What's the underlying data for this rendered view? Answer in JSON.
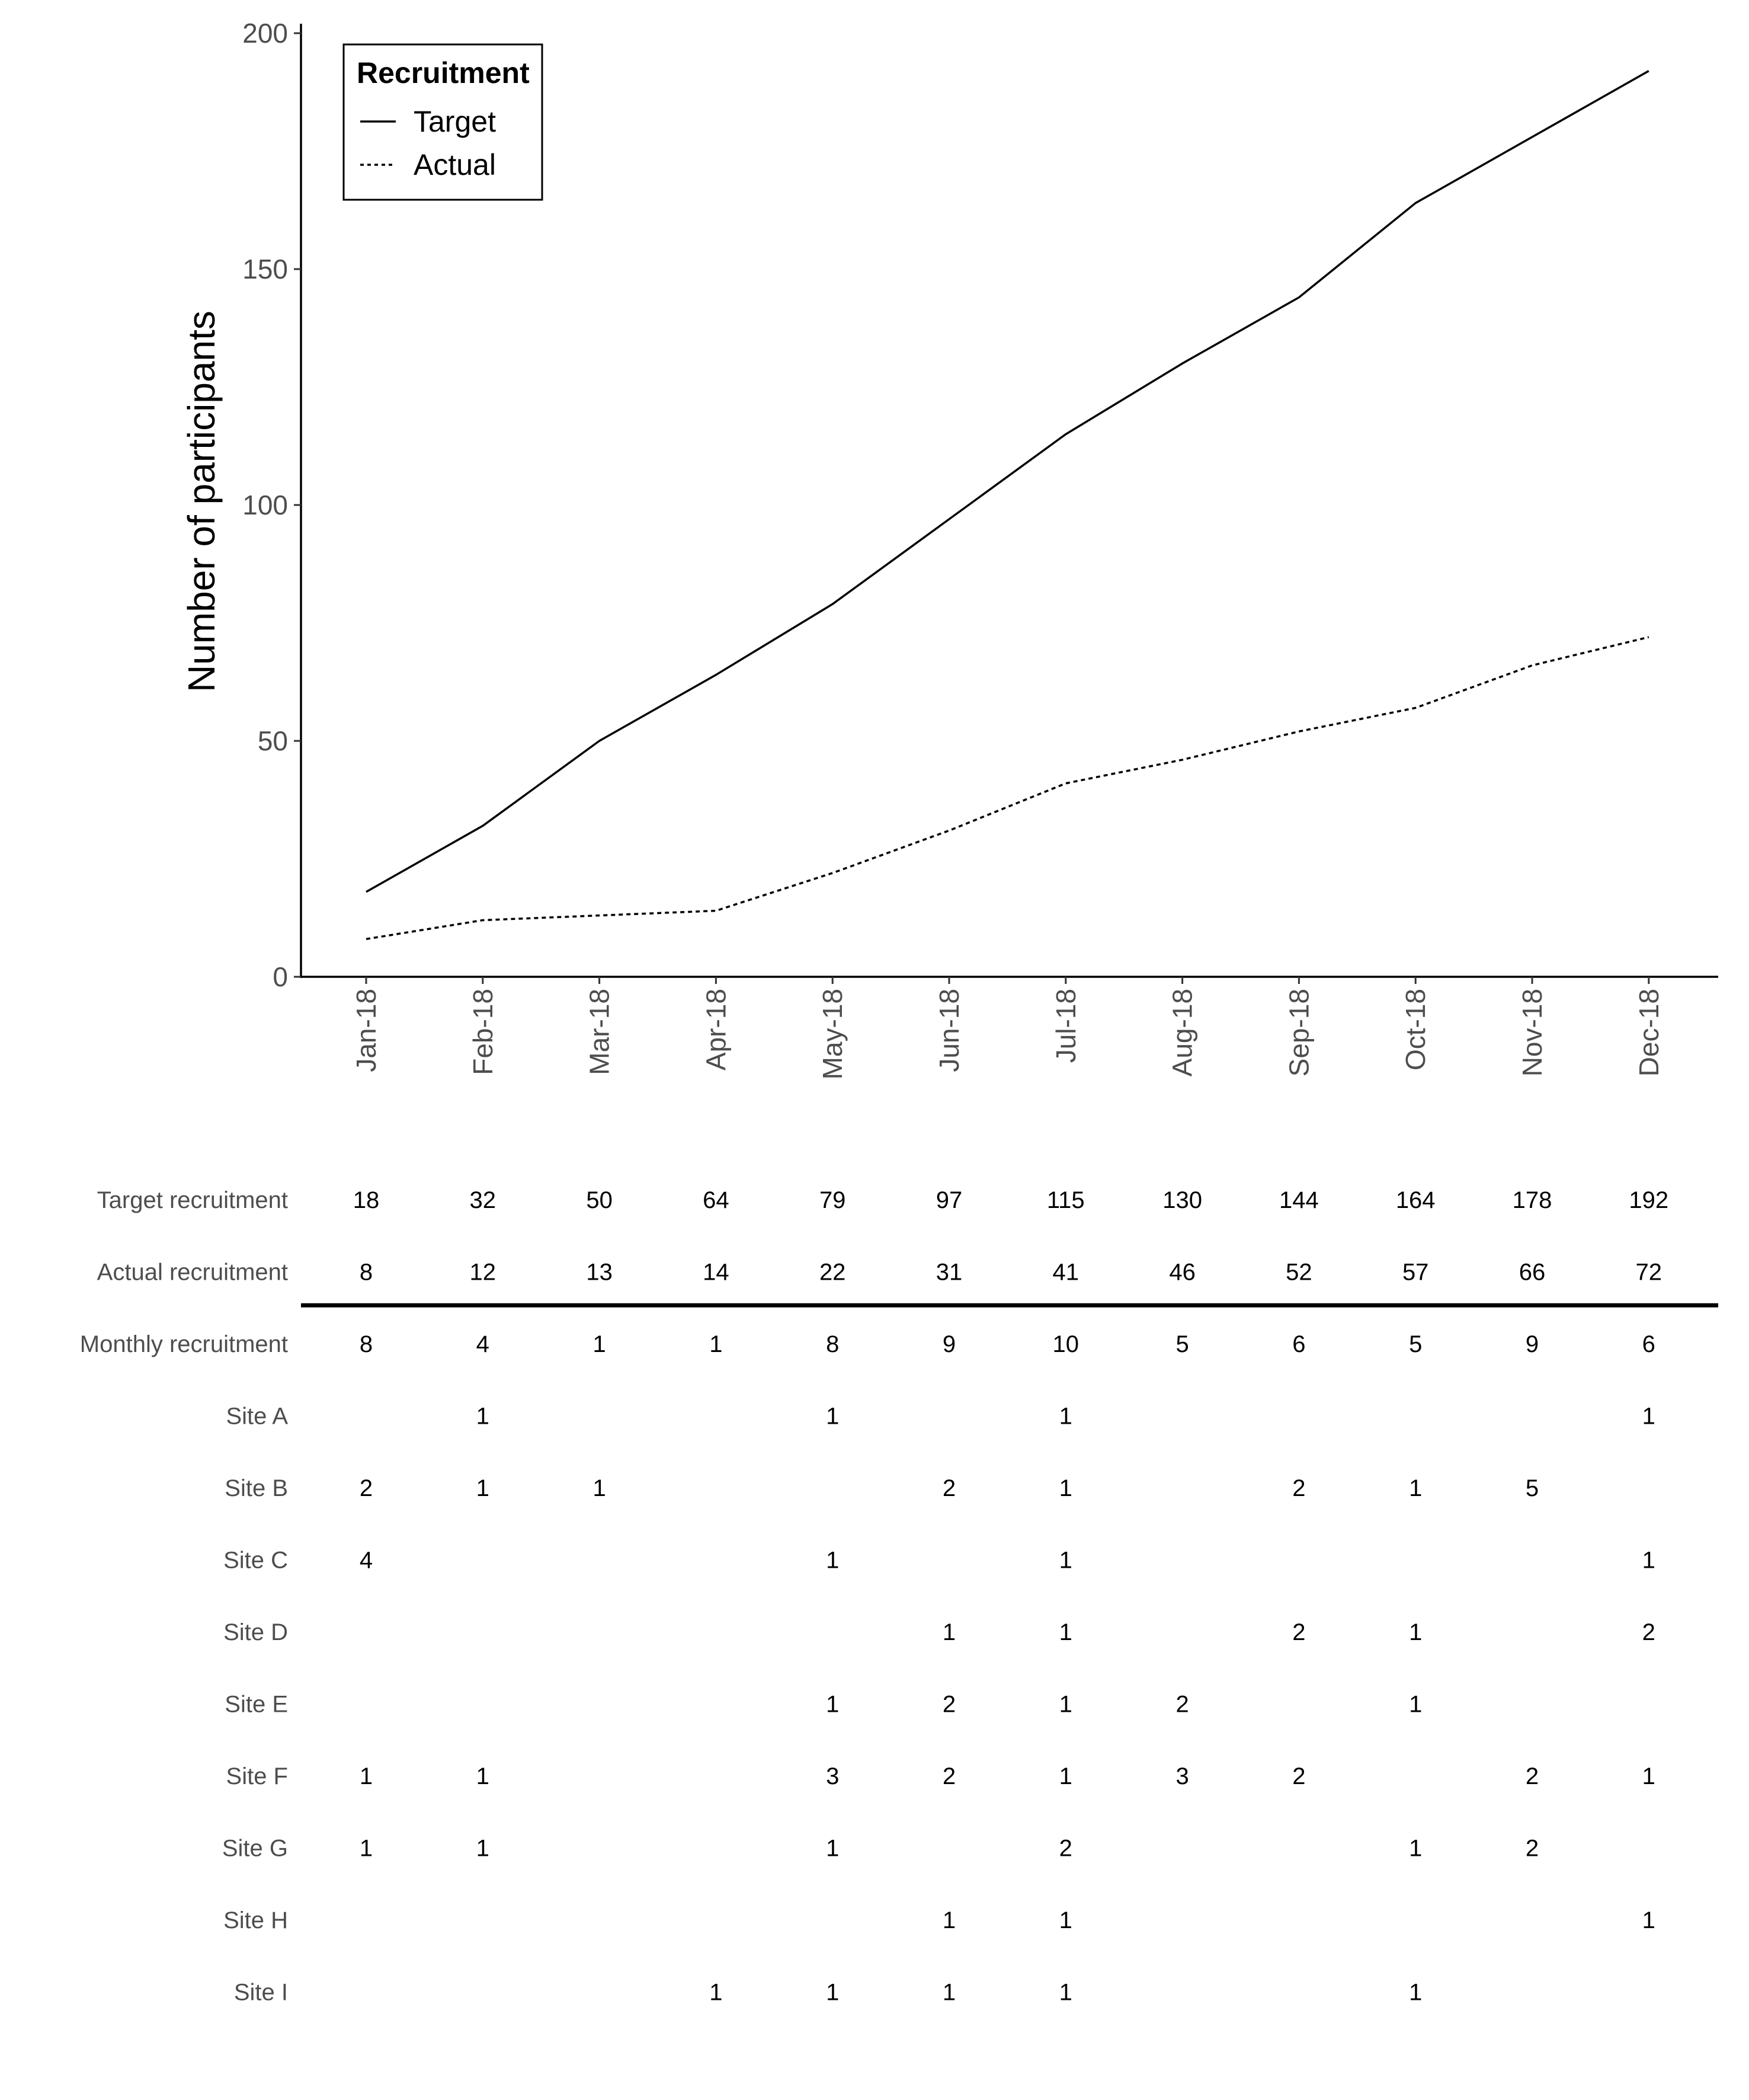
{
  "chart_data": {
    "type": "line",
    "ylabel": "Number of participants",
    "xlabel": "",
    "ylim": [
      0,
      200
    ],
    "yticks": [
      0,
      50,
      100,
      150,
      200
    ],
    "x": [
      "Jan-18",
      "Feb-18",
      "Mar-18",
      "Apr-18",
      "May-18",
      "Jun-18",
      "Jul-18",
      "Aug-18",
      "Sep-18",
      "Oct-18",
      "Nov-18",
      "Dec-18"
    ],
    "series": [
      {
        "name": "Target",
        "linestyle": "solid",
        "values": [
          18,
          32,
          50,
          64,
          79,
          97,
          115,
          130,
          144,
          164,
          178,
          192
        ]
      },
      {
        "name": "Actual",
        "linestyle": "dotted",
        "values": [
          8,
          12,
          13,
          14,
          22,
          31,
          41,
          46,
          52,
          57,
          66,
          72
        ]
      }
    ],
    "legend": {
      "title": "Recruitment",
      "placement": "top-left"
    },
    "grid": false
  },
  "table": {
    "rows": [
      {
        "label": "Target recruitment",
        "values": [
          "18",
          "32",
          "50",
          "64",
          "79",
          "97",
          "115",
          "130",
          "144",
          "164",
          "178",
          "192"
        ]
      },
      {
        "label": "Actual recruitment",
        "values": [
          "8",
          "12",
          "13",
          "14",
          "22",
          "31",
          "41",
          "46",
          "52",
          "57",
          "66",
          "72"
        ]
      },
      {
        "label": "Monthly recruitment",
        "values": [
          "8",
          "4",
          "1",
          "1",
          "8",
          "9",
          "10",
          "5",
          "6",
          "5",
          "9",
          "6"
        ]
      },
      {
        "label": "Site A",
        "values": [
          "",
          "1",
          "",
          "",
          "1",
          "",
          "1",
          "",
          "",
          "",
          "",
          "1"
        ]
      },
      {
        "label": "Site B",
        "values": [
          "2",
          "1",
          "1",
          "",
          "",
          "2",
          "1",
          "",
          "2",
          "1",
          "5",
          ""
        ]
      },
      {
        "label": "Site C",
        "values": [
          "4",
          "",
          "",
          "",
          "1",
          "",
          "1",
          "",
          "",
          "",
          "",
          "1"
        ]
      },
      {
        "label": "Site D",
        "values": [
          "",
          "",
          "",
          "",
          "",
          "1",
          "1",
          "",
          "2",
          "1",
          "",
          "2"
        ]
      },
      {
        "label": "Site E",
        "values": [
          "",
          "",
          "",
          "",
          "1",
          "2",
          "1",
          "2",
          "",
          "1",
          "",
          ""
        ]
      },
      {
        "label": "Site F",
        "values": [
          "1",
          "1",
          "",
          "",
          "3",
          "2",
          "1",
          "3",
          "2",
          "",
          "2",
          "1"
        ]
      },
      {
        "label": "Site G",
        "values": [
          "1",
          "1",
          "",
          "",
          "1",
          "",
          "2",
          "",
          "",
          "1",
          "2",
          ""
        ]
      },
      {
        "label": "Site H",
        "values": [
          "",
          "",
          "",
          "",
          "",
          "1",
          "1",
          "",
          "",
          "",
          "",
          "1"
        ]
      },
      {
        "label": "Site I",
        "values": [
          "",
          "",
          "",
          "1",
          "1",
          "1",
          "1",
          "",
          "",
          "1",
          "",
          ""
        ]
      }
    ]
  }
}
